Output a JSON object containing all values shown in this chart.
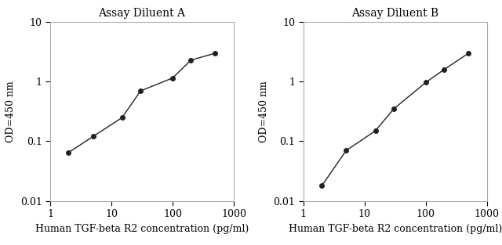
{
  "panel_A": {
    "title": "Assay Diluent A",
    "x": [
      2,
      5,
      15,
      30,
      100,
      200,
      500
    ],
    "y": [
      0.065,
      0.12,
      0.25,
      0.7,
      1.15,
      2.3,
      3.0
    ]
  },
  "panel_B": {
    "title": "Assay Diluent B",
    "x": [
      2,
      5,
      15,
      30,
      100,
      200,
      500
    ],
    "y": [
      0.018,
      0.07,
      0.15,
      0.35,
      0.97,
      1.6,
      3.0
    ]
  },
  "xlabel": "Human TGF-beta R2 concentration (pg/ml)",
  "ylabel": "OD=450 nm",
  "xlim": [
    1,
    1000
  ],
  "ylim": [
    0.01,
    10
  ],
  "xticks": [
    1,
    10,
    100,
    1000
  ],
  "xtick_labels": [
    "1",
    "10",
    "100",
    "1000"
  ],
  "yticks": [
    0.01,
    0.1,
    1,
    10
  ],
  "ytick_labels": [
    "0.01",
    "0.1",
    "1",
    "10"
  ],
  "line_color": "#222222",
  "marker": "o",
  "markersize": 4,
  "linewidth": 1.0,
  "bg_color": "#ffffff",
  "spine_color": "#aaaaaa",
  "title_fontsize": 10,
  "label_fontsize": 9,
  "tick_fontsize": 9,
  "font_family": "serif"
}
